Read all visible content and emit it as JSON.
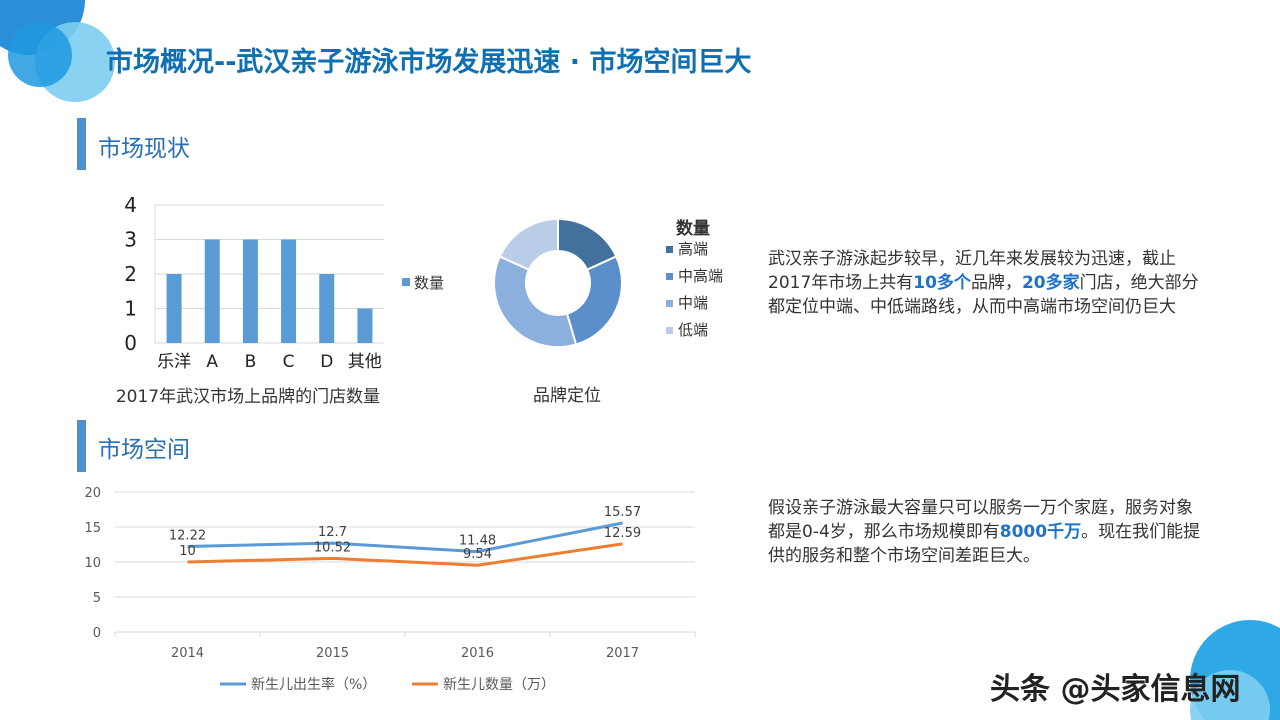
{
  "title": "市场概况--武汉亲子游泳市场发展迅速 · 市场空间巨大",
  "section1_title": "市场现状",
  "section2_title": "市场空间",
  "paragraph1": {
    "p1": "武汉亲子游泳起步较早，近几年来发展较为迅速，截止2017年市场上共有",
    "b1": "10多个",
    "p2": "品牌，",
    "b2": "20多家",
    "p3": "门店，绝大部分都定位中端、中低端路线，从而中高端市场空间仍巨大"
  },
  "paragraph2": {
    "p1": "假设亲子游泳最大容量只可以服务一万个家庭，服务对象都是0-4岁，那么市场规模即有",
    "b1": "8000千万",
    "p2": "。现在我们能提供的服务和整个市场空间差距巨大。"
  },
  "watermark": "头条 @头家信息网",
  "colors": {
    "accent": "#4f8fd0",
    "title": "#0f6fb3",
    "highlight": "#1e73c8",
    "bar": "#5b9bd5",
    "line1": "#5b9bd5",
    "line2": "#ed7d31"
  },
  "chart_data": [
    {
      "type": "bar",
      "categories": [
        "乐洋",
        "A",
        "B",
        "C",
        "D",
        "其他"
      ],
      "values": [
        2,
        3,
        3,
        3,
        2,
        1
      ],
      "title": "2017年武汉市场上品牌的门店数量",
      "series": [
        {
          "name": "数量",
          "values": [
            2,
            3,
            3,
            3,
            2,
            1
          ]
        }
      ],
      "ylim": [
        0,
        4
      ],
      "yticks": [
        0,
        1,
        2,
        3,
        4
      ],
      "grid": true,
      "legend": "right"
    },
    {
      "type": "pie",
      "donut": true,
      "title": "品牌定位",
      "legend_title": "数量",
      "labels": [
        "高端",
        "中高端",
        "中端",
        "低端"
      ],
      "values": [
        2,
        3,
        4,
        2
      ],
      "colors": [
        "#41719c",
        "#5b8fcb",
        "#8cb0de",
        "#b9cde9"
      ],
      "legend": "right"
    },
    {
      "type": "line",
      "x": [
        "2014",
        "2015",
        "2016",
        "2017"
      ],
      "series": [
        {
          "name": "新生儿出生率（%）",
          "values": [
            12.22,
            12.7,
            11.48,
            15.57
          ]
        },
        {
          "name": "新生儿数量（万）",
          "values": [
            10,
            10.52,
            9.54,
            12.59
          ]
        }
      ],
      "data_labels": [
        [
          "12.22",
          "12.7",
          "11.48",
          "15.57"
        ],
        [
          "10",
          "10.52",
          "9.54",
          "12.59"
        ]
      ],
      "ylim": [
        0,
        20
      ],
      "yticks": [
        0,
        5,
        10,
        15,
        20
      ],
      "grid": true,
      "legend": "bottom"
    }
  ]
}
